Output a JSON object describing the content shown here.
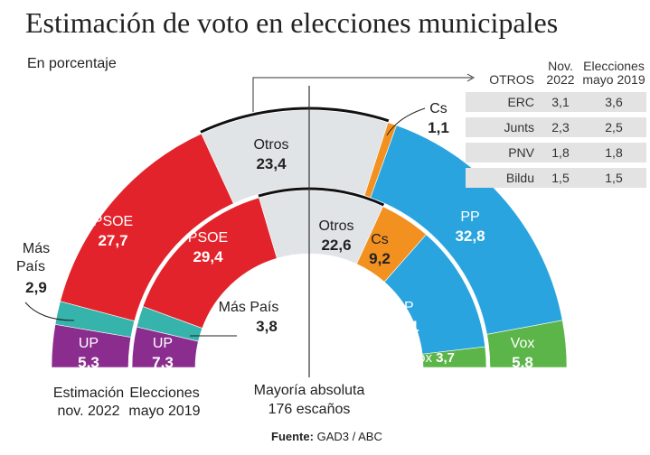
{
  "title": "Estimación de voto en elecciones municipales",
  "subtitle": "En porcentaje",
  "source": {
    "label": "Fuente:",
    "value": "GAD3 / ABC"
  },
  "colors": {
    "UP": "#8b2d8f",
    "Más País": "#36b3aa",
    "PSOE": "#e3232b",
    "Otros": "#e1e4e7",
    "Cs": "#f29020",
    "PP": "#2aa4de",
    "Vox": "#5bb548"
  },
  "chart_data": {
    "type": "pie",
    "subtype": "semicircle-donut",
    "categories": [
      "UP",
      "Más País",
      "PSOE",
      "Otros",
      "Cs",
      "PP",
      "Vox"
    ],
    "series": [
      {
        "name": "Estimación nov. 2022",
        "values": [
          5.3,
          2.9,
          27.7,
          23.4,
          1.1,
          32.8,
          5.8
        ]
      },
      {
        "name": "Elecciones mayo 2019",
        "values": [
          7.3,
          3.8,
          29.4,
          22.6,
          9.2,
          23.1,
          3.7
        ]
      }
    ],
    "annotations": {
      "majority": "Mayoría absoluta",
      "majority_seats": "176 escaños"
    }
  },
  "others_table": {
    "headers": [
      "OTROS",
      "Nov. 2022",
      "Elecciones mayo 2019"
    ],
    "rows": [
      {
        "party": "ERC",
        "nov2022": "3,1",
        "may2019": "3,6"
      },
      {
        "party": "Junts",
        "nov2022": "2,3",
        "may2019": "2,5"
      },
      {
        "party": "PNV",
        "nov2022": "1,8",
        "may2019": "1,8"
      },
      {
        "party": "Bildu",
        "nov2022": "1,5",
        "may2019": "1,5"
      }
    ]
  }
}
